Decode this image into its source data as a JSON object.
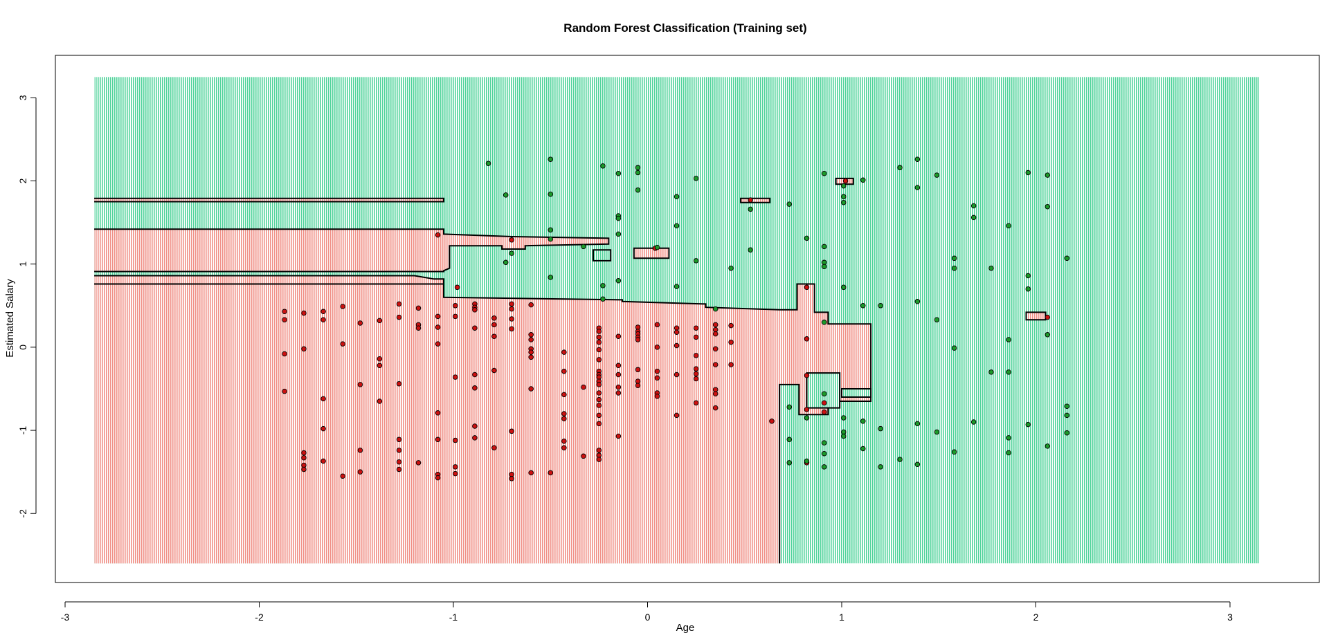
{
  "chart_data": {
    "type": "scatter",
    "title": "Random Forest Classification (Training set)",
    "xlabel": "Age",
    "ylabel": "Estimated Salary",
    "xlim": [
      -3.05,
      3.46
    ],
    "ylim": [
      -2.83,
      3.51
    ],
    "x_ticks": [
      "-3",
      "-2",
      "-1",
      "0",
      "1",
      "2",
      "3"
    ],
    "y_ticks": [
      "-2",
      "-1",
      "0",
      "1",
      "2",
      "3"
    ],
    "grid_extent": {
      "x": [
        -2.85,
        3.15
      ],
      "y": [
        -2.6,
        3.25
      ]
    },
    "colors": {
      "region_red": "#f08f86",
      "region_green": "#4fd39a",
      "point_red": "#cc1111",
      "point_green": "#1c9a2a"
    },
    "series": [
      {
        "class": 0,
        "points": [
          [
            -1.87,
            0.43
          ],
          [
            -1.87,
            0.33
          ],
          [
            -1.87,
            -0.08
          ],
          [
            -1.87,
            -0.53
          ],
          [
            -1.77,
            0.41
          ],
          [
            -1.77,
            -0.02
          ],
          [
            -1.77,
            -1.27
          ],
          [
            -1.77,
            -1.33
          ],
          [
            -1.77,
            -1.42
          ],
          [
            -1.77,
            -1.47
          ],
          [
            -1.67,
            0.43
          ],
          [
            -1.67,
            0.33
          ],
          [
            -1.67,
            -0.62
          ],
          [
            -1.67,
            -0.98
          ],
          [
            -1.67,
            -1.37
          ],
          [
            -1.57,
            0.49
          ],
          [
            -1.57,
            0.04
          ],
          [
            -1.57,
            -1.55
          ],
          [
            -1.48,
            0.29
          ],
          [
            -1.48,
            -0.45
          ],
          [
            -1.48,
            -1.24
          ],
          [
            -1.48,
            -1.5
          ],
          [
            -1.38,
            0.32
          ],
          [
            -1.38,
            -0.14
          ],
          [
            -1.38,
            -0.22
          ],
          [
            -1.38,
            -0.65
          ],
          [
            -1.28,
            0.52
          ],
          [
            -1.28,
            0.36
          ],
          [
            -1.28,
            -0.44
          ],
          [
            -1.28,
            -1.11
          ],
          [
            -1.28,
            -1.24
          ],
          [
            -1.28,
            -1.38
          ],
          [
            -1.28,
            -1.47
          ],
          [
            -1.18,
            0.47
          ],
          [
            -1.18,
            0.27
          ],
          [
            -1.18,
            0.23
          ],
          [
            -1.18,
            -1.39
          ],
          [
            -1.08,
            0.37
          ],
          [
            -1.08,
            0.24
          ],
          [
            -1.08,
            0.04
          ],
          [
            -1.08,
            -0.79
          ],
          [
            -1.08,
            -1.11
          ],
          [
            -1.08,
            -1.53
          ],
          [
            -1.08,
            -1.57
          ],
          [
            -1.08,
            1.35
          ],
          [
            -0.98,
            0.72
          ],
          [
            -0.99,
            0.5
          ],
          [
            -0.99,
            0.37
          ],
          [
            -0.99,
            -0.36
          ],
          [
            -0.99,
            -1.12
          ],
          [
            -0.99,
            -1.44
          ],
          [
            -0.99,
            -1.52
          ],
          [
            -0.89,
            0.52
          ],
          [
            -0.89,
            0.48
          ],
          [
            -0.89,
            0.45
          ],
          [
            -0.89,
            0.23
          ],
          [
            -0.89,
            -0.33
          ],
          [
            -0.89,
            -0.49
          ],
          [
            -0.89,
            -0.95
          ],
          [
            -0.89,
            -1.09
          ],
          [
            -0.79,
            0.35
          ],
          [
            -0.79,
            0.27
          ],
          [
            -0.79,
            0.13
          ],
          [
            -0.79,
            -0.28
          ],
          [
            -0.79,
            -1.21
          ],
          [
            -0.7,
            0.52
          ],
          [
            -0.7,
            0.46
          ],
          [
            -0.7,
            0.34
          ],
          [
            -0.7,
            0.22
          ],
          [
            -0.7,
            -1.01
          ],
          [
            -0.7,
            -1.53
          ],
          [
            -0.7,
            -1.58
          ],
          [
            -0.7,
            1.29
          ],
          [
            -0.6,
            0.51
          ],
          [
            -0.6,
            0.15
          ],
          [
            -0.6,
            0.09
          ],
          [
            -0.6,
            -0.02
          ],
          [
            -0.6,
            -0.06
          ],
          [
            -0.6,
            -0.12
          ],
          [
            -0.6,
            -0.5
          ],
          [
            -0.6,
            -1.51
          ],
          [
            -0.5,
            -1.51
          ],
          [
            -0.43,
            -0.06
          ],
          [
            -0.43,
            -0.29
          ],
          [
            -0.43,
            -0.57
          ],
          [
            -0.43,
            -0.8
          ],
          [
            -0.43,
            -0.86
          ],
          [
            -0.43,
            -1.13
          ],
          [
            -0.43,
            -1.21
          ],
          [
            -0.33,
            -0.48
          ],
          [
            -0.33,
            -1.31
          ],
          [
            -0.25,
            0.23
          ],
          [
            -0.25,
            0.19
          ],
          [
            -0.25,
            0.12
          ],
          [
            -0.25,
            0.06
          ],
          [
            -0.25,
            -0.03
          ],
          [
            -0.25,
            -0.15
          ],
          [
            -0.25,
            -0.29
          ],
          [
            -0.25,
            -0.33
          ],
          [
            -0.25,
            -0.36
          ],
          [
            -0.25,
            -0.41
          ],
          [
            -0.25,
            -0.45
          ],
          [
            -0.25,
            -0.55
          ],
          [
            -0.25,
            -0.63
          ],
          [
            -0.25,
            -0.7
          ],
          [
            -0.25,
            -0.82
          ],
          [
            -0.25,
            -0.92
          ],
          [
            -0.25,
            -1.24
          ],
          [
            -0.25,
            -1.3
          ],
          [
            -0.25,
            -1.35
          ],
          [
            -0.15,
            0.13
          ],
          [
            -0.15,
            -0.22
          ],
          [
            -0.15,
            -0.33
          ],
          [
            -0.15,
            -0.48
          ],
          [
            -0.15,
            -0.55
          ],
          [
            -0.15,
            -1.07
          ],
          [
            -0.05,
            0.24
          ],
          [
            -0.05,
            0.19
          ],
          [
            -0.05,
            0.16
          ],
          [
            -0.05,
            0.12
          ],
          [
            -0.05,
            0.09
          ],
          [
            -0.05,
            -0.27
          ],
          [
            -0.05,
            -0.41
          ],
          [
            -0.05,
            -0.46
          ],
          [
            0.05,
            0.27
          ],
          [
            0.05,
            0.0
          ],
          [
            0.05,
            -0.29
          ],
          [
            0.05,
            -0.37
          ],
          [
            0.05,
            -0.55
          ],
          [
            0.05,
            -0.59
          ],
          [
            0.04,
            1.19
          ],
          [
            0.15,
            0.23
          ],
          [
            0.15,
            0.18
          ],
          [
            0.15,
            0.02
          ],
          [
            0.15,
            -0.33
          ],
          [
            0.15,
            -0.82
          ],
          [
            0.25,
            0.23
          ],
          [
            0.25,
            0.12
          ],
          [
            0.25,
            -0.1
          ],
          [
            0.25,
            -0.26
          ],
          [
            0.25,
            -0.32
          ],
          [
            0.25,
            -0.38
          ],
          [
            0.25,
            -0.67
          ],
          [
            0.35,
            0.27
          ],
          [
            0.35,
            0.21
          ],
          [
            0.35,
            0.16
          ],
          [
            0.35,
            -0.02
          ],
          [
            0.35,
            -0.21
          ],
          [
            0.35,
            -0.51
          ],
          [
            0.35,
            -0.56
          ],
          [
            0.35,
            -0.73
          ],
          [
            0.43,
            0.26
          ],
          [
            0.43,
            0.06
          ],
          [
            0.43,
            -0.21
          ],
          [
            0.53,
            1.77
          ],
          [
            0.64,
            -0.89
          ],
          [
            0.82,
            0.72
          ],
          [
            0.82,
            0.1
          ],
          [
            0.82,
            -0.34
          ],
          [
            0.82,
            -0.75
          ],
          [
            0.82,
            -1.39
          ],
          [
            0.91,
            -0.67
          ],
          [
            0.91,
            -0.78
          ],
          [
            1.02,
            2.0
          ],
          [
            2.06,
            0.36
          ]
        ]
      },
      {
        "class": 1,
        "points": [
          [
            -0.82,
            2.21
          ],
          [
            -0.73,
            1.83
          ],
          [
            -0.73,
            1.02
          ],
          [
            -0.7,
            1.13
          ],
          [
            -0.5,
            2.26
          ],
          [
            -0.5,
            1.84
          ],
          [
            -0.5,
            1.41
          ],
          [
            -0.5,
            1.3
          ],
          [
            -0.5,
            0.84
          ],
          [
            -0.33,
            1.21
          ],
          [
            -0.23,
            2.18
          ],
          [
            -0.23,
            0.74
          ],
          [
            -0.23,
            0.58
          ],
          [
            -0.15,
            2.09
          ],
          [
            -0.15,
            1.58
          ],
          [
            -0.15,
            1.55
          ],
          [
            -0.15,
            1.36
          ],
          [
            -0.15,
            0.8
          ],
          [
            -0.05,
            2.16
          ],
          [
            -0.05,
            2.1
          ],
          [
            -0.05,
            1.89
          ],
          [
            0.05,
            1.2
          ],
          [
            0.15,
            1.81
          ],
          [
            0.15,
            1.46
          ],
          [
            0.15,
            0.73
          ],
          [
            0.25,
            2.03
          ],
          [
            0.25,
            1.04
          ],
          [
            0.35,
            0.46
          ],
          [
            0.43,
            0.95
          ],
          [
            0.53,
            1.66
          ],
          [
            0.53,
            1.17
          ],
          [
            0.73,
            1.72
          ],
          [
            0.73,
            -0.72
          ],
          [
            0.73,
            -1.11
          ],
          [
            0.73,
            -1.39
          ],
          [
            0.82,
            1.31
          ],
          [
            0.82,
            -0.85
          ],
          [
            0.82,
            -1.37
          ],
          [
            0.91,
            2.09
          ],
          [
            0.91,
            1.21
          ],
          [
            0.91,
            1.02
          ],
          [
            0.91,
            0.97
          ],
          [
            0.91,
            0.3
          ],
          [
            0.91,
            -0.56
          ],
          [
            0.91,
            -1.15
          ],
          [
            0.91,
            -1.28
          ],
          [
            0.91,
            -1.44
          ],
          [
            1.01,
            1.94
          ],
          [
            1.01,
            1.81
          ],
          [
            1.01,
            1.74
          ],
          [
            1.01,
            0.72
          ],
          [
            1.01,
            -0.85
          ],
          [
            1.01,
            -1.02
          ],
          [
            1.01,
            -1.07
          ],
          [
            1.11,
            2.01
          ],
          [
            1.11,
            0.5
          ],
          [
            1.11,
            -0.89
          ],
          [
            1.11,
            -1.22
          ],
          [
            1.2,
            0.5
          ],
          [
            1.2,
            -0.98
          ],
          [
            1.2,
            -1.44
          ],
          [
            1.3,
            2.16
          ],
          [
            1.3,
            -1.35
          ],
          [
            1.39,
            2.26
          ],
          [
            1.39,
            1.92
          ],
          [
            1.39,
            0.55
          ],
          [
            1.39,
            -0.92
          ],
          [
            1.39,
            -1.41
          ],
          [
            1.49,
            2.07
          ],
          [
            1.49,
            0.33
          ],
          [
            1.49,
            -1.02
          ],
          [
            1.58,
            1.07
          ],
          [
            1.58,
            0.95
          ],
          [
            1.58,
            -0.01
          ],
          [
            1.58,
            -1.26
          ],
          [
            1.68,
            1.7
          ],
          [
            1.68,
            1.56
          ],
          [
            1.68,
            -0.9
          ],
          [
            1.77,
            0.95
          ],
          [
            1.77,
            -0.3
          ],
          [
            1.86,
            1.46
          ],
          [
            1.86,
            0.09
          ],
          [
            1.86,
            -0.3
          ],
          [
            1.86,
            -1.09
          ],
          [
            1.86,
            -1.27
          ],
          [
            1.96,
            2.1
          ],
          [
            1.96,
            0.86
          ],
          [
            1.96,
            0.7
          ],
          [
            1.96,
            -0.93
          ],
          [
            2.06,
            2.07
          ],
          [
            2.06,
            1.69
          ],
          [
            2.06,
            0.15
          ],
          [
            2.06,
            -1.19
          ],
          [
            2.16,
            1.07
          ],
          [
            2.16,
            -0.71
          ],
          [
            2.16,
            -0.82
          ],
          [
            2.16,
            -1.03
          ]
        ]
      }
    ]
  }
}
